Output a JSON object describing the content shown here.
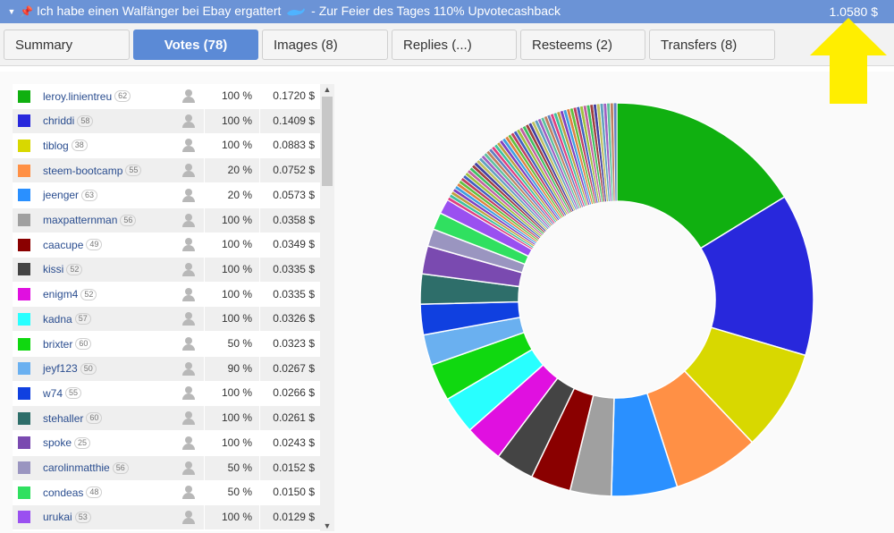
{
  "header": {
    "title": "Ich habe einen Walfänger bei Ebay ergattert",
    "title_suffix": " - Zur Feier des Tages 110% Upvotecashback",
    "payout": "1.0580 $"
  },
  "tabs": [
    {
      "label": "Summary"
    },
    {
      "label": "Votes (78)"
    },
    {
      "label": "Images (8)"
    },
    {
      "label": "Replies (...)"
    },
    {
      "label": "Resteems (2)"
    },
    {
      "label": "Transfers (8)"
    }
  ],
  "votes": [
    {
      "name": "leroy.linientreu",
      "rep": "62",
      "pct": "100 %",
      "value": "0.1720 $",
      "color": "#10b010"
    },
    {
      "name": "chriddi",
      "rep": "58",
      "pct": "100 %",
      "value": "0.1409 $",
      "color": "#2828dc"
    },
    {
      "name": "tiblog",
      "rep": "38",
      "pct": "100 %",
      "value": "0.0883 $",
      "color": "#d8d800"
    },
    {
      "name": "steem-bootcamp",
      "rep": "55",
      "pct": "20 %",
      "value": "0.0752 $",
      "color": "#ff9045"
    },
    {
      "name": "jeenger",
      "rep": "63",
      "pct": "20 %",
      "value": "0.0573 $",
      "color": "#2a90ff"
    },
    {
      "name": "maxpatternman",
      "rep": "56",
      "pct": "100 %",
      "value": "0.0358 $",
      "color": "#a0a0a0"
    },
    {
      "name": "caacupe",
      "rep": "49",
      "pct": "100 %",
      "value": "0.0349 $",
      "color": "#8a0000"
    },
    {
      "name": "kissi",
      "rep": "52",
      "pct": "100 %",
      "value": "0.0335 $",
      "color": "#444444"
    },
    {
      "name": "enigm4",
      "rep": "52",
      "pct": "100 %",
      "value": "0.0335 $",
      "color": "#e010e0"
    },
    {
      "name": "kadna",
      "rep": "57",
      "pct": "100 %",
      "value": "0.0326 $",
      "color": "#28ffff"
    },
    {
      "name": "brixter",
      "rep": "60",
      "pct": "50 %",
      "value": "0.0323 $",
      "color": "#10d810"
    },
    {
      "name": "jeyf123",
      "rep": "50",
      "pct": "90 %",
      "value": "0.0267 $",
      "color": "#6ab0f0"
    },
    {
      "name": "w74",
      "rep": "55",
      "pct": "100 %",
      "value": "0.0266 $",
      "color": "#1040e0"
    },
    {
      "name": "stehaller",
      "rep": "60",
      "pct": "100 %",
      "value": "0.0261 $",
      "color": "#2e6e6a"
    },
    {
      "name": "spoke",
      "rep": "25",
      "pct": "100 %",
      "value": "0.0243 $",
      "color": "#7a4ab0"
    },
    {
      "name": "carolinmatthie",
      "rep": "56",
      "pct": "50 %",
      "value": "0.0152 $",
      "color": "#9a95c0"
    },
    {
      "name": "condeas",
      "rep": "48",
      "pct": "50 %",
      "value": "0.0150 $",
      "color": "#30e060"
    },
    {
      "name": "urukai",
      "rep": "53",
      "pct": "100 %",
      "value": "0.0129 $",
      "color": "#9a50f0"
    }
  ],
  "chart_data": {
    "type": "pie",
    "labels": [
      "leroy.linientreu",
      "chriddi",
      "tiblog",
      "steem-bootcamp",
      "jeenger",
      "maxpatternman",
      "caacupe",
      "kissi",
      "enigm4",
      "kadna",
      "brixter",
      "jeyf123",
      "w74",
      "stehaller",
      "spoke",
      "carolinmatthie",
      "condeas",
      "urukai"
    ],
    "values": [
      0.172,
      0.1409,
      0.0883,
      0.0752,
      0.0573,
      0.0358,
      0.0349,
      0.0335,
      0.0335,
      0.0326,
      0.0323,
      0.0267,
      0.0266,
      0.0261,
      0.0243,
      0.0152,
      0.015,
      0.0129
    ],
    "total": 1.058,
    "donut": true
  }
}
